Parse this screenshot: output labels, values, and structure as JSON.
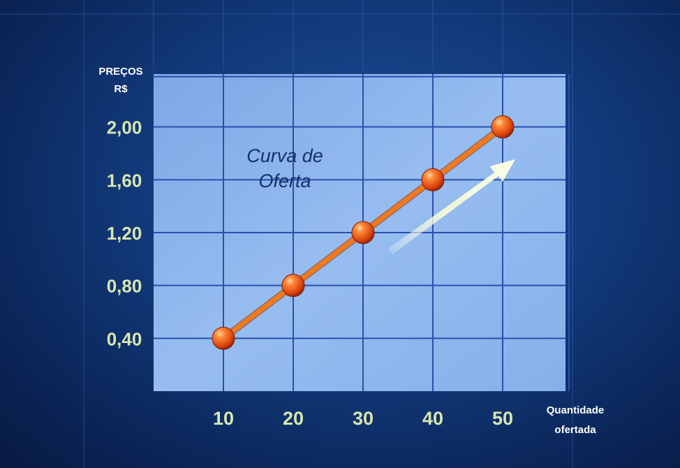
{
  "chart_data": {
    "type": "line",
    "ylabel_lines": [
      "PREÇOS",
      "R$"
    ],
    "xlabel_lines": [
      "Quantidade",
      "ofertada"
    ],
    "annotation_lines": [
      "Curva de",
      "Oferta"
    ],
    "x": [
      10,
      20,
      30,
      40,
      50
    ],
    "y": [
      0.4,
      0.8,
      1.2,
      1.6,
      2.0
    ],
    "x_ticks": [
      "10",
      "20",
      "30",
      "40",
      "50"
    ],
    "y_ticks": [
      "0,40",
      "0,80",
      "1,20",
      "1,60",
      "2,00"
    ],
    "xlim": [
      0,
      59
    ],
    "ylim": [
      0,
      2.4
    ],
    "grid": true,
    "series": [
      {
        "values": [
          0.4,
          0.8,
          1.2,
          1.6,
          2.0
        ]
      }
    ],
    "colors": {
      "line": "#f07a1e",
      "marker": "#e85a14",
      "plot_bg": "#8fb6ec",
      "grid": "#2a4fae",
      "tick_text": "#d8e6b0",
      "arrow": "#eef6c8"
    }
  }
}
